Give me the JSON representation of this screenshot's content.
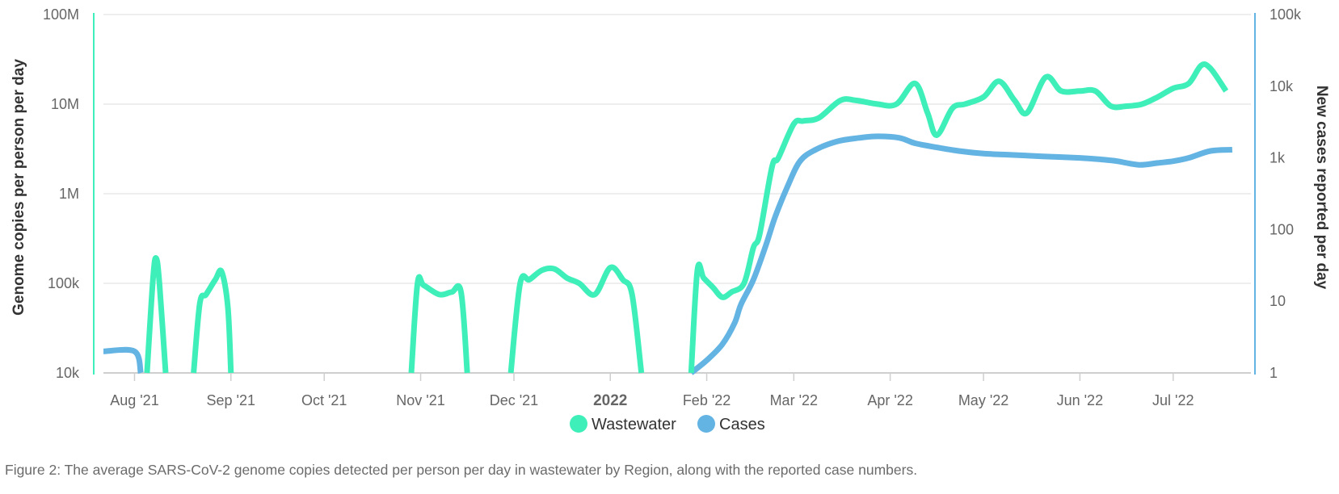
{
  "chart_data": {
    "type": "line",
    "caption": "Figure 2: The average SARS-CoV-2 genome copies detected per person per day in wastewater by Region, along with the reported case numbers.",
    "y_left": {
      "label": "Genome copies per person per day",
      "scale": "log",
      "range": [
        10000,
        100000000
      ],
      "ticks": [
        {
          "value": 10000,
          "label": "10k"
        },
        {
          "value": 100000,
          "label": "100k"
        },
        {
          "value": 1000000,
          "label": "1M"
        },
        {
          "value": 10000000,
          "label": "10M"
        },
        {
          "value": 100000000,
          "label": "100M"
        }
      ],
      "axis_color": "#3fefb9"
    },
    "y_right": {
      "label": "New cases reported per day",
      "scale": "log",
      "range": [
        1,
        100000
      ],
      "ticks": [
        {
          "value": 1,
          "label": "1"
        },
        {
          "value": 10,
          "label": "10"
        },
        {
          "value": 100,
          "label": "100"
        },
        {
          "value": 1000,
          "label": "1k"
        },
        {
          "value": 10000,
          "label": "10k"
        },
        {
          "value": 100000,
          "label": "100k"
        }
      ],
      "axis_color": "#63b3e3"
    },
    "x_axis": {
      "range": [
        "2021-07-22",
        "2022-07-26"
      ],
      "ticks": [
        {
          "date": "2021-08-01",
          "label": "Aug '21",
          "bold": false
        },
        {
          "date": "2021-09-01",
          "label": "Sep '21",
          "bold": false
        },
        {
          "date": "2021-10-01",
          "label": "Oct '21",
          "bold": false
        },
        {
          "date": "2021-11-01",
          "label": "Nov '21",
          "bold": false
        },
        {
          "date": "2021-12-01",
          "label": "Dec '21",
          "bold": false
        },
        {
          "date": "2022-01-01",
          "label": "2022",
          "bold": true
        },
        {
          "date": "2022-02-01",
          "label": "Feb '22",
          "bold": false
        },
        {
          "date": "2022-03-01",
          "label": "Mar '22",
          "bold": false
        },
        {
          "date": "2022-04-01",
          "label": "Apr '22",
          "bold": false
        },
        {
          "date": "2022-05-01",
          "label": "May '22",
          "bold": false
        },
        {
          "date": "2022-06-01",
          "label": "Jun '22",
          "bold": false
        },
        {
          "date": "2022-07-01",
          "label": "Jul '22",
          "bold": false
        }
      ]
    },
    "grid": true,
    "legend": {
      "position": "bottom-center"
    },
    "series": [
      {
        "name": "Wastewater",
        "axis": "left",
        "color": "#3fefb9",
        "segments": [
          [
            [
              "2021-08-05",
              10000
            ],
            [
              "2021-08-07",
              120000
            ],
            [
              "2021-08-08",
              190000
            ],
            [
              "2021-08-09",
              100000
            ],
            [
              "2021-08-11",
              10000
            ]
          ],
          [
            [
              "2021-08-20",
              10000
            ],
            [
              "2021-08-22",
              60000
            ],
            [
              "2021-08-24",
              75000
            ],
            [
              "2021-08-27",
              110000
            ],
            [
              "2021-08-29",
              135000
            ],
            [
              "2021-08-31",
              55000
            ],
            [
              "2021-09-01",
              10000
            ]
          ],
          [
            [
              "2021-10-29",
              10000
            ],
            [
              "2021-10-31",
              100000
            ],
            [
              "2021-11-02",
              95000
            ],
            [
              "2021-11-07",
              75000
            ],
            [
              "2021-11-11",
              80000
            ],
            [
              "2021-11-14",
              80000
            ],
            [
              "2021-11-16",
              10000
            ]
          ],
          [
            [
              "2021-11-30",
              10000
            ],
            [
              "2021-12-03",
              100000
            ],
            [
              "2021-12-06",
              110000
            ],
            [
              "2021-12-10",
              140000
            ],
            [
              "2021-12-14",
              145000
            ],
            [
              "2021-12-18",
              115000
            ],
            [
              "2021-12-22",
              100000
            ],
            [
              "2021-12-27",
              75000
            ],
            [
              "2022-01-01",
              150000
            ],
            [
              "2022-01-05",
              110000
            ],
            [
              "2022-01-08",
              75000
            ],
            [
              "2022-01-11",
              10000
            ]
          ],
          [
            [
              "2022-01-27",
              10000
            ],
            [
              "2022-01-29",
              140000
            ],
            [
              "2022-01-31",
              115000
            ],
            [
              "2022-02-03",
              90000
            ],
            [
              "2022-02-06",
              70000
            ],
            [
              "2022-02-09",
              80000
            ],
            [
              "2022-02-13",
              100000
            ],
            [
              "2022-02-16",
              250000
            ],
            [
              "2022-02-18",
              350000
            ],
            [
              "2022-02-22",
              2000000
            ],
            [
              "2022-02-24",
              2500000
            ],
            [
              "2022-03-01",
              6000000
            ],
            [
              "2022-03-04",
              6500000
            ],
            [
              "2022-03-09",
              7000000
            ],
            [
              "2022-03-16",
              11000000
            ],
            [
              "2022-03-21",
              11000000
            ],
            [
              "2022-03-28",
              10000000
            ],
            [
              "2022-04-03",
              10000000
            ],
            [
              "2022-04-09",
              17000000
            ],
            [
              "2022-04-13",
              8000000
            ],
            [
              "2022-04-16",
              4500000
            ],
            [
              "2022-04-21",
              9000000
            ],
            [
              "2022-04-25",
              10000000
            ],
            [
              "2022-05-01",
              12000000
            ],
            [
              "2022-05-06",
              18000000
            ],
            [
              "2022-05-11",
              11000000
            ],
            [
              "2022-05-15",
              8000000
            ],
            [
              "2022-05-21",
              20000000
            ],
            [
              "2022-05-26",
              14000000
            ],
            [
              "2022-06-01",
              14000000
            ],
            [
              "2022-06-06",
              14000000
            ],
            [
              "2022-06-11",
              9500000
            ],
            [
              "2022-06-16",
              9500000
            ],
            [
              "2022-06-21",
              10000000
            ],
            [
              "2022-06-26",
              12000000
            ],
            [
              "2022-07-01",
              15000000
            ],
            [
              "2022-07-06",
              17000000
            ],
            [
              "2022-07-10",
              27000000
            ],
            [
              "2022-07-13",
              25000000
            ],
            [
              "2022-07-18",
              14000000
            ]
          ]
        ]
      },
      {
        "name": "Cases",
        "axis": "right",
        "color": "#63b3e3",
        "segments": [
          [
            [
              "2021-07-22",
              2
            ],
            [
              "2021-08-01",
              2
            ],
            [
              "2021-08-03",
              1
            ]
          ],
          [
            [
              "2022-01-27",
              1
            ],
            [
              "2022-02-01",
              1.5
            ],
            [
              "2022-02-06",
              2.5
            ],
            [
              "2022-02-10",
              5
            ],
            [
              "2022-02-12",
              9
            ],
            [
              "2022-02-16",
              20
            ],
            [
              "2022-02-20",
              60
            ],
            [
              "2022-02-23",
              150
            ],
            [
              "2022-02-27",
              400
            ],
            [
              "2022-03-03",
              900
            ],
            [
              "2022-03-08",
              1300
            ],
            [
              "2022-03-15",
              1700
            ],
            [
              "2022-03-22",
              1900
            ],
            [
              "2022-03-28",
              2000
            ],
            [
              "2022-04-04",
              1900
            ],
            [
              "2022-04-09",
              1600
            ],
            [
              "2022-04-16",
              1400
            ],
            [
              "2022-04-23",
              1250
            ],
            [
              "2022-05-01",
              1150
            ],
            [
              "2022-05-10",
              1100
            ],
            [
              "2022-05-20",
              1050
            ],
            [
              "2022-06-01",
              1000
            ],
            [
              "2022-06-08",
              950
            ],
            [
              "2022-06-13",
              900
            ],
            [
              "2022-06-20",
              800
            ],
            [
              "2022-06-26",
              850
            ],
            [
              "2022-07-01",
              900
            ],
            [
              "2022-07-06",
              1000
            ],
            [
              "2022-07-13",
              1250
            ],
            [
              "2022-07-20",
              1300
            ]
          ]
        ]
      }
    ]
  }
}
